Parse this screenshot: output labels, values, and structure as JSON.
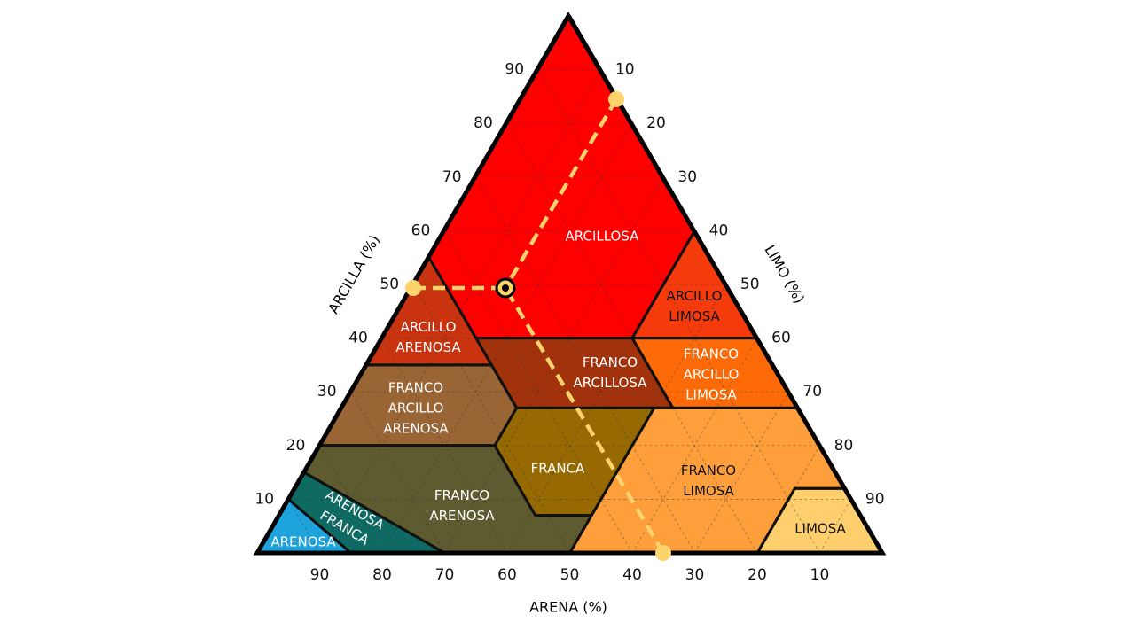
{
  "axes": {
    "clay": {
      "title": "ARCILLA (%)",
      "ticks": [
        "10",
        "20",
        "30",
        "40",
        "50",
        "60",
        "70",
        "80",
        "90"
      ]
    },
    "silt": {
      "title": "LIMO (%)",
      "ticks": [
        "10",
        "20",
        "30",
        "40",
        "50",
        "60",
        "70",
        "80",
        "90"
      ]
    },
    "sand": {
      "title": "ARENA (%)",
      "ticks": [
        "90",
        "80",
        "70",
        "60",
        "50",
        "40",
        "30",
        "20",
        "10"
      ]
    }
  },
  "regions": [
    {
      "lines": [
        "ARCILLOSA"
      ]
    },
    {
      "lines": [
        "ARCILLO",
        "LIMOSA"
      ]
    },
    {
      "lines": [
        "ARCILLO",
        "ARENOSA"
      ]
    },
    {
      "lines": [
        "FRANCO",
        "ARCILLOSA"
      ]
    },
    {
      "lines": [
        "FRANCO",
        "ARCILLO",
        "LIMOSA"
      ]
    },
    {
      "lines": [
        "FRANCO",
        "ARCILLO",
        "ARENOSA"
      ]
    },
    {
      "lines": [
        "FRANCA"
      ]
    },
    {
      "lines": [
        "FRANCO",
        "LIMOSA"
      ]
    },
    {
      "lines": [
        "LIMOSA"
      ]
    },
    {
      "lines": [
        "FRANCO",
        "ARENOSA"
      ]
    },
    {
      "lines": [
        "ARENOSA",
        "FRANCA"
      ]
    },
    {
      "lines": [
        "ARENOSA"
      ]
    }
  ]
}
